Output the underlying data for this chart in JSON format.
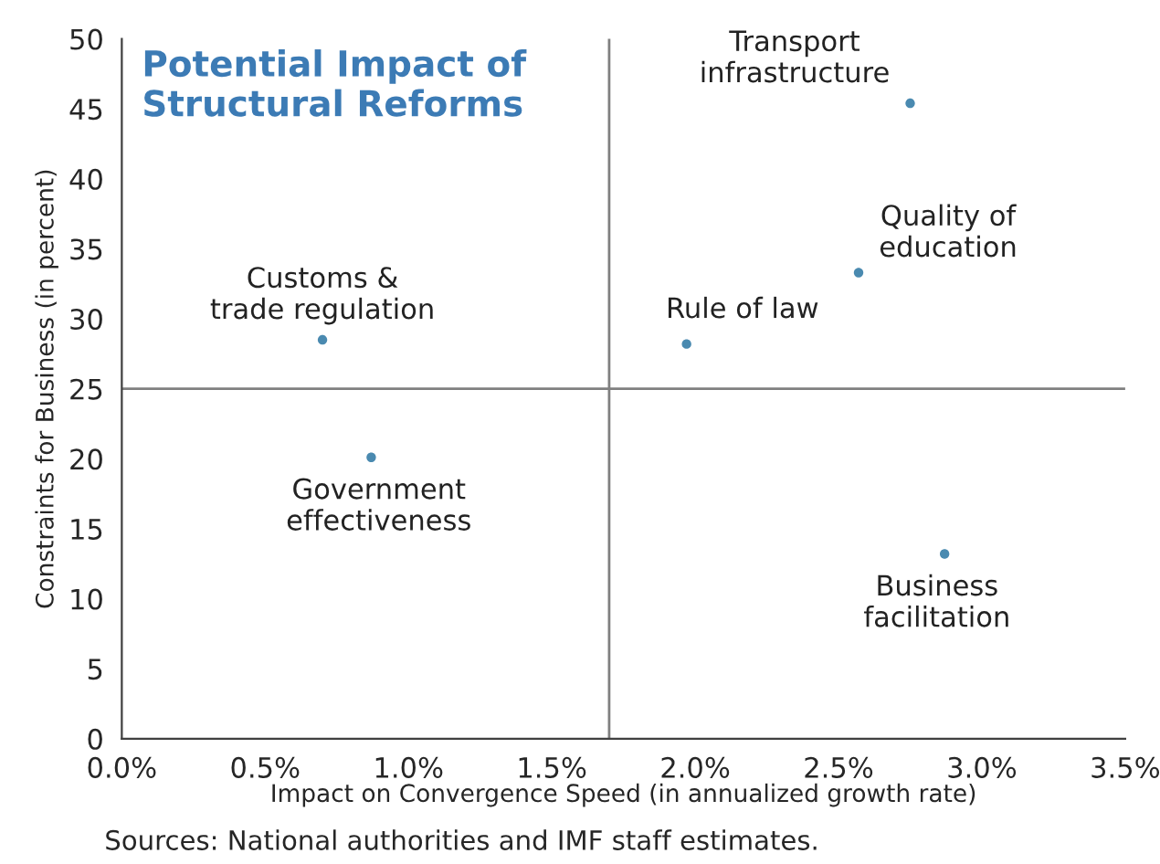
{
  "chart_data": {
    "type": "scatter",
    "title": "Potential Impact of\nStructural Reforms",
    "xlabel": "Impact on Convergence Speed (in annualized growth rate)",
    "ylabel": "Constraints for Business (in percent)",
    "x": [
      2.75,
      2.57,
      1.97,
      0.7,
      0.87,
      2.87
    ],
    "series": [
      {
        "color": "#4a8ab0",
        "values": [
          45.4,
          33.3,
          28.2,
          28.5,
          20.1,
          13.2
        ]
      }
    ],
    "marker": "circle",
    "grid": false,
    "legend": false,
    "xlim": [
      0,
      3.5
    ],
    "xticks": [
      {
        "value": 0,
        "label": "0.0%"
      },
      {
        "value": 0.5,
        "label": "0.5%"
      },
      {
        "value": 1.0,
        "label": "1.0%"
      },
      {
        "value": 1.5,
        "label": "1.5%"
      },
      {
        "value": 2.0,
        "label": "2.0%"
      },
      {
        "value": 2.5,
        "label": "2.5%"
      },
      {
        "value": 3.0,
        "label": "3.0%"
      },
      {
        "value": 3.5,
        "label": "3.5%"
      }
    ],
    "ylim": [
      0,
      50
    ],
    "yticks": [
      0,
      5,
      10,
      15,
      20,
      25,
      30,
      35,
      40,
      45,
      50
    ],
    "ref_lines": [
      {
        "axis": "x",
        "value": 1.7,
        "color": "#808080"
      },
      {
        "axis": "y",
        "value": 25,
        "color": "#808080"
      }
    ],
    "annotations": [
      {
        "text": "Transport\ninfrastructure",
        "x": 2.75,
        "y": 45.4
      },
      {
        "text": "Quality of\neducation",
        "x": 2.57,
        "y": 33.3
      },
      {
        "text": "Rule of law",
        "x": 1.97,
        "y": 28.2
      },
      {
        "text": "Customs &\ntrade regulation",
        "x": 0.7,
        "y": 28.5
      },
      {
        "text": "Government\neffectiveness",
        "x": 0.87,
        "y": 20.1
      },
      {
        "text": "Business\nfacilitation",
        "x": 2.87,
        "y": 13.2
      },
      "Sources: National authorities and IMF staff estimates."
    ]
  }
}
